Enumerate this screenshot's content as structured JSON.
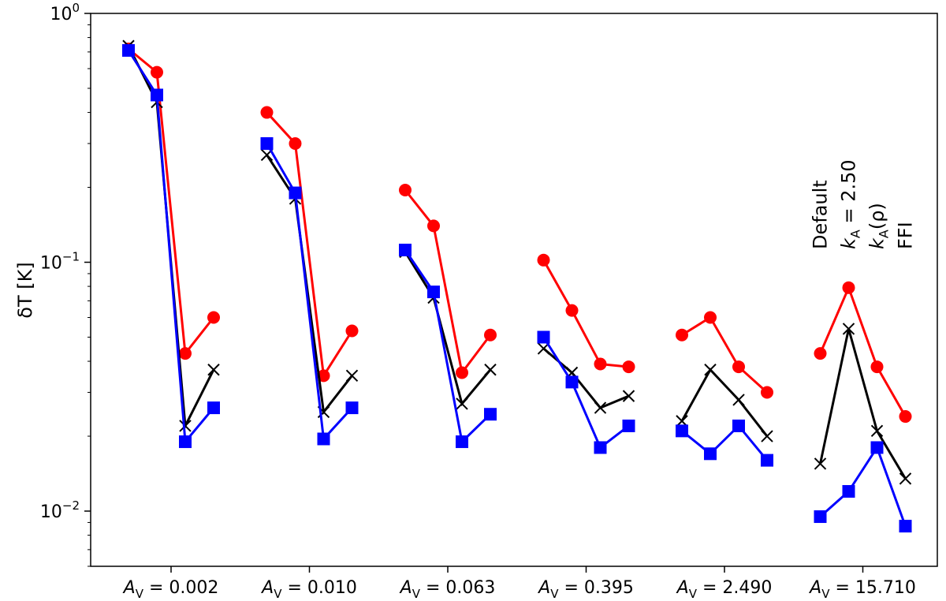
{
  "chart_data": {
    "type": "line",
    "ylabel": "δT [K]",
    "yscale": "log",
    "ylim": [
      0.006,
      1.0
    ],
    "y_ticks": [
      {
        "value": 0.01,
        "base": "10",
        "exp": "−2"
      },
      {
        "value": 0.1,
        "base": "10",
        "exp": "−1"
      },
      {
        "value": 1.0,
        "base": "10",
        "exp": "0"
      }
    ],
    "grid": false,
    "groups": [
      {
        "label_prefix": "A",
        "label_sub": "V",
        "label_value": "= 0.002"
      },
      {
        "label_prefix": "A",
        "label_sub": "V",
        "label_value": "= 0.010"
      },
      {
        "label_prefix": "A",
        "label_sub": "V",
        "label_value": "= 0.063"
      },
      {
        "label_prefix": "A",
        "label_sub": "V",
        "label_value": "= 0.395"
      },
      {
        "label_prefix": "A",
        "label_sub": "V",
        "label_value": "= 2.490"
      },
      {
        "label_prefix": "A",
        "label_sub": "V",
        "label_value": "= 15.710"
      }
    ],
    "points_per_group": [
      "Default",
      "kA = 2.50",
      "kA(ρ)",
      "FFI"
    ],
    "legend_vertical": [
      "Default",
      "k_A = 2.50",
      "k_A(ρ)",
      "FFI"
    ],
    "series": [
      {
        "marker": "circle",
        "color": "#ff0000",
        "groups": [
          [
            0.72,
            0.58,
            0.043,
            0.06
          ],
          [
            0.4,
            0.3,
            0.035,
            0.053
          ],
          [
            0.195,
            0.14,
            0.036,
            0.051
          ],
          [
            0.102,
            0.064,
            0.039,
            0.038
          ],
          [
            0.051,
            0.06,
            0.038,
            0.03
          ],
          [
            0.043,
            0.079,
            0.038,
            0.024
          ]
        ]
      },
      {
        "marker": "x",
        "color": "#000000",
        "groups": [
          [
            0.74,
            0.44,
            0.022,
            0.037
          ],
          [
            0.27,
            0.18,
            0.025,
            0.035
          ],
          [
            0.11,
            0.072,
            0.027,
            0.037
          ],
          [
            0.045,
            0.036,
            0.026,
            0.029
          ],
          [
            0.023,
            0.037,
            0.028,
            0.02
          ],
          [
            0.0155,
            0.054,
            0.021,
            0.0135
          ]
        ]
      },
      {
        "marker": "square",
        "color": "#0000ff",
        "groups": [
          [
            0.71,
            0.47,
            0.019,
            0.026
          ],
          [
            0.3,
            0.19,
            0.0195,
            0.026
          ],
          [
            0.112,
            0.076,
            0.019,
            0.0245
          ],
          [
            0.05,
            0.033,
            0.018,
            0.022
          ],
          [
            0.021,
            0.017,
            0.022,
            0.016
          ],
          [
            0.0095,
            0.012,
            0.018,
            0.0087
          ]
        ]
      }
    ]
  }
}
